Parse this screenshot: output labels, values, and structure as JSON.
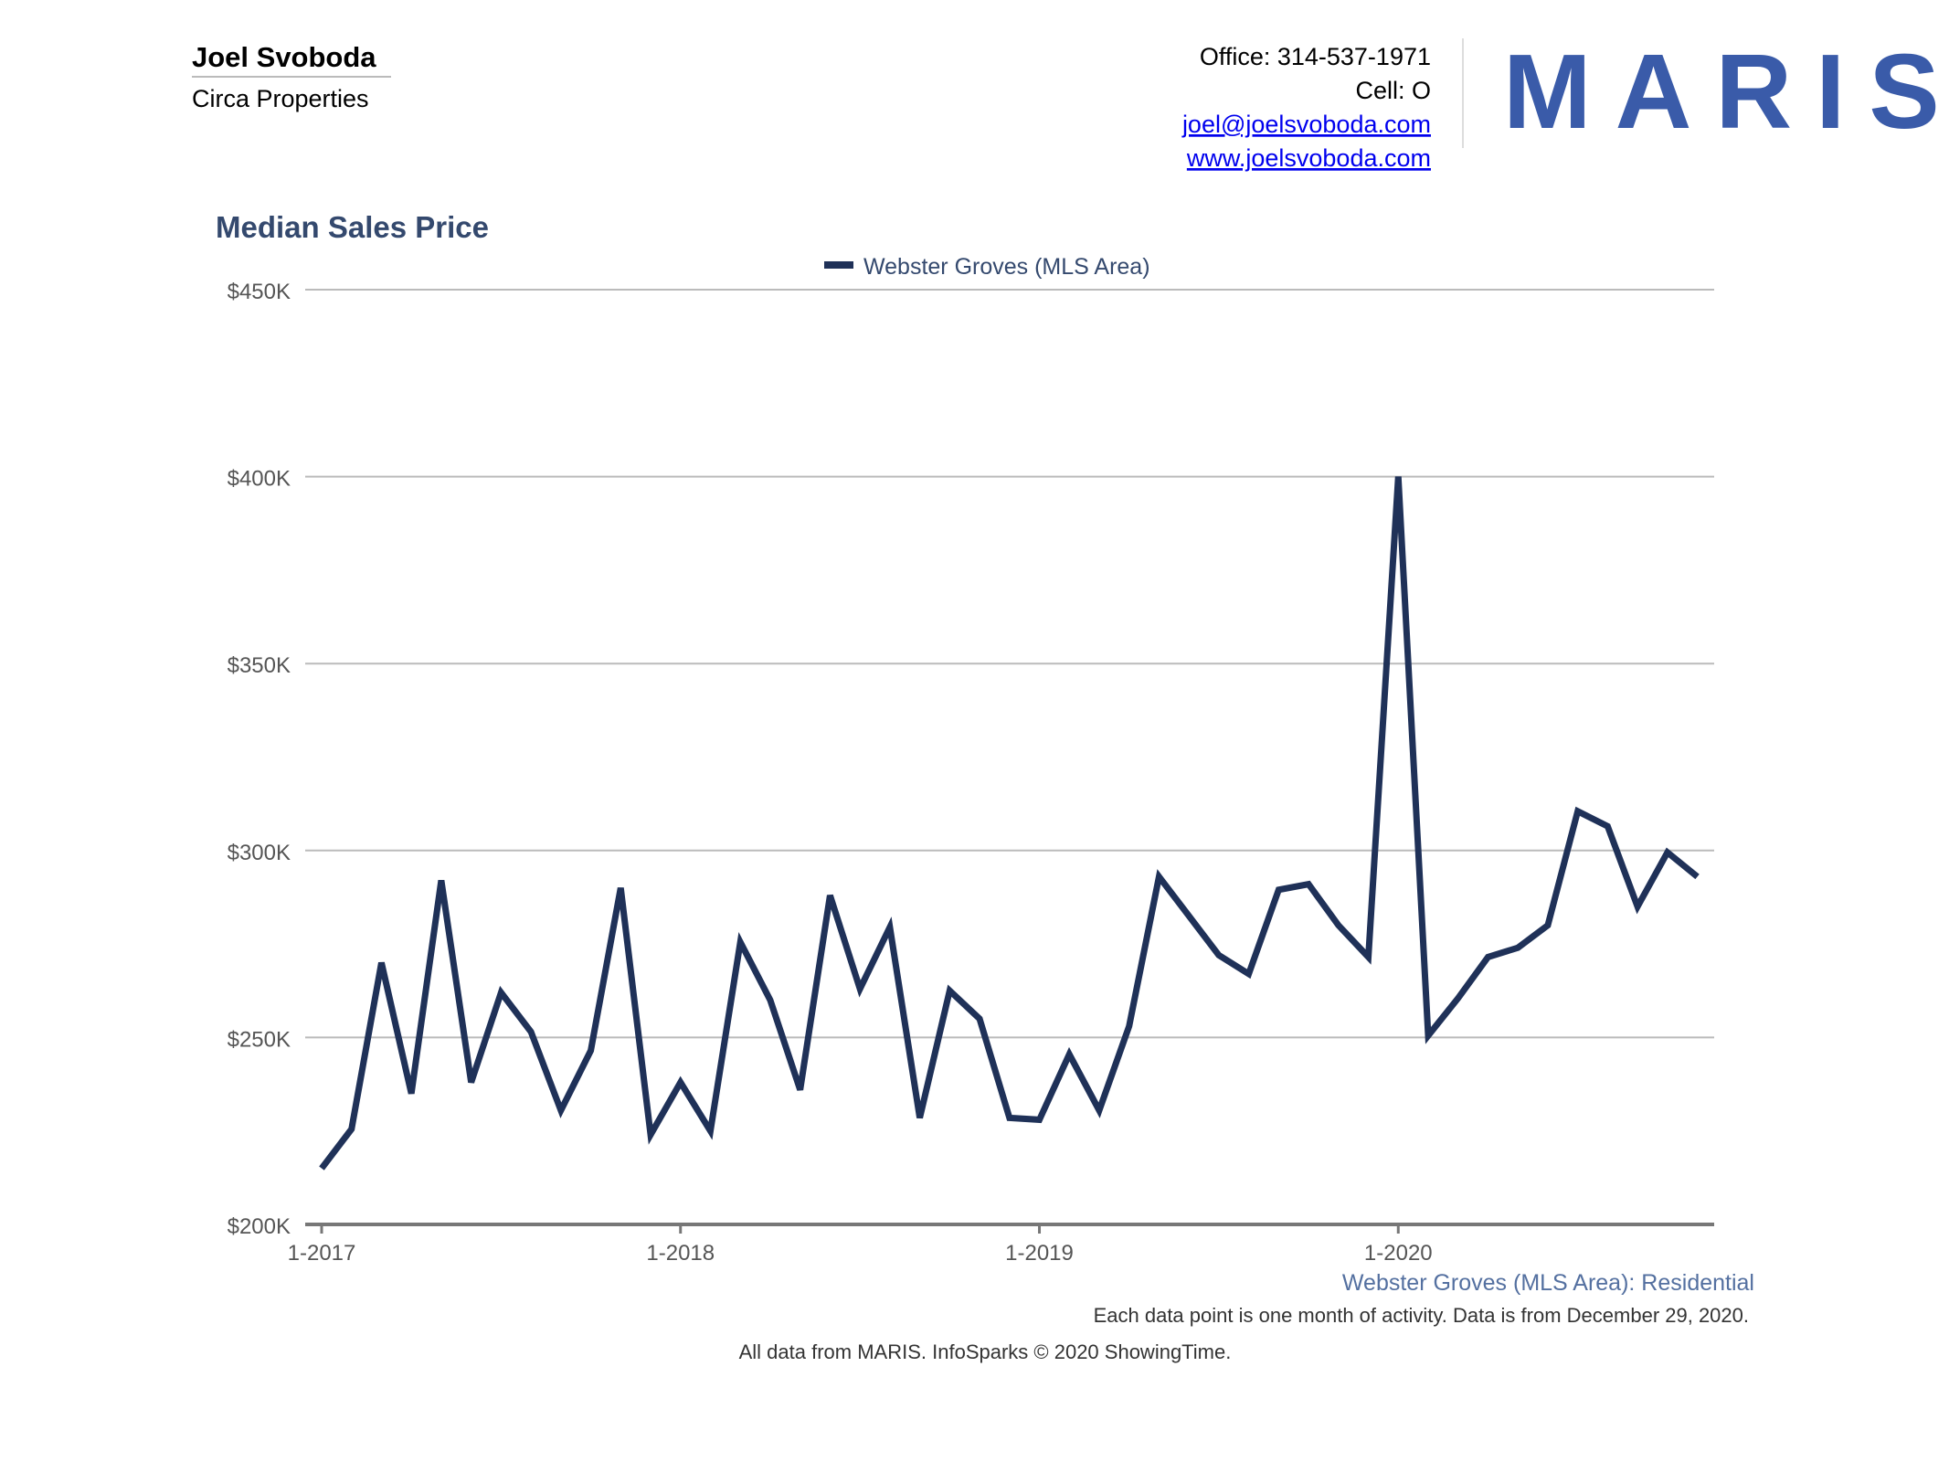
{
  "agent": {
    "name": "Joel Svoboda",
    "company": "Circa Properties"
  },
  "contact": {
    "office": "Office: 314-537-1971",
    "cell": "Cell: O",
    "email": "joel@joelsvoboda.com",
    "website": "www.joelsvoboda.com"
  },
  "logo": "MARIS",
  "chart_data": {
    "type": "line",
    "title": "Median Sales Price",
    "subtitle": "Webster Groves (MLS Area): Residential",
    "note": "Each data point is one month of activity. Data is from December 29, 2020.",
    "source": "All data from MARIS. InfoSparks © 2020 ShowingTime.",
    "categories": [
      "1-2017",
      null,
      null,
      null,
      null,
      null,
      null,
      null,
      null,
      null,
      null,
      null,
      "1-2018",
      null,
      null,
      null,
      null,
      null,
      null,
      null,
      null,
      null,
      null,
      null,
      "1-2019",
      null,
      null,
      null,
      null,
      null,
      null,
      null,
      null,
      null,
      null,
      null,
      "1-2020",
      null,
      null,
      null,
      null,
      null,
      null,
      null,
      null,
      null,
      null
    ],
    "series": [
      {
        "name": "Webster Groves (MLS Area)",
        "color": "#1f3158",
        "values": [
          215000,
          225500,
          270000,
          235000,
          292000,
          238000,
          262000,
          251500,
          230500,
          246500,
          290000,
          224000,
          238000,
          225000,
          275500,
          260000,
          236000,
          288000,
          263000,
          279500,
          228500,
          262500,
          255000,
          228500,
          228000,
          245500,
          230500,
          253000,
          293000,
          282500,
          272000,
          267000,
          289500,
          291000,
          280000,
          271500,
          400000,
          250500,
          260500,
          271500,
          274000,
          280000,
          310500,
          306500,
          285000,
          299500,
          293000
        ]
      }
    ],
    "ylim": [
      200000,
      450000
    ],
    "yticks": [
      {
        "value": 200000,
        "label": "$200K"
      },
      {
        "value": 250000,
        "label": "$250K"
      },
      {
        "value": 300000,
        "label": "$300K"
      },
      {
        "value": 350000,
        "label": "$350K"
      },
      {
        "value": 400000,
        "label": "$400K"
      },
      {
        "value": 450000,
        "label": "$450K"
      }
    ],
    "grid": true
  }
}
